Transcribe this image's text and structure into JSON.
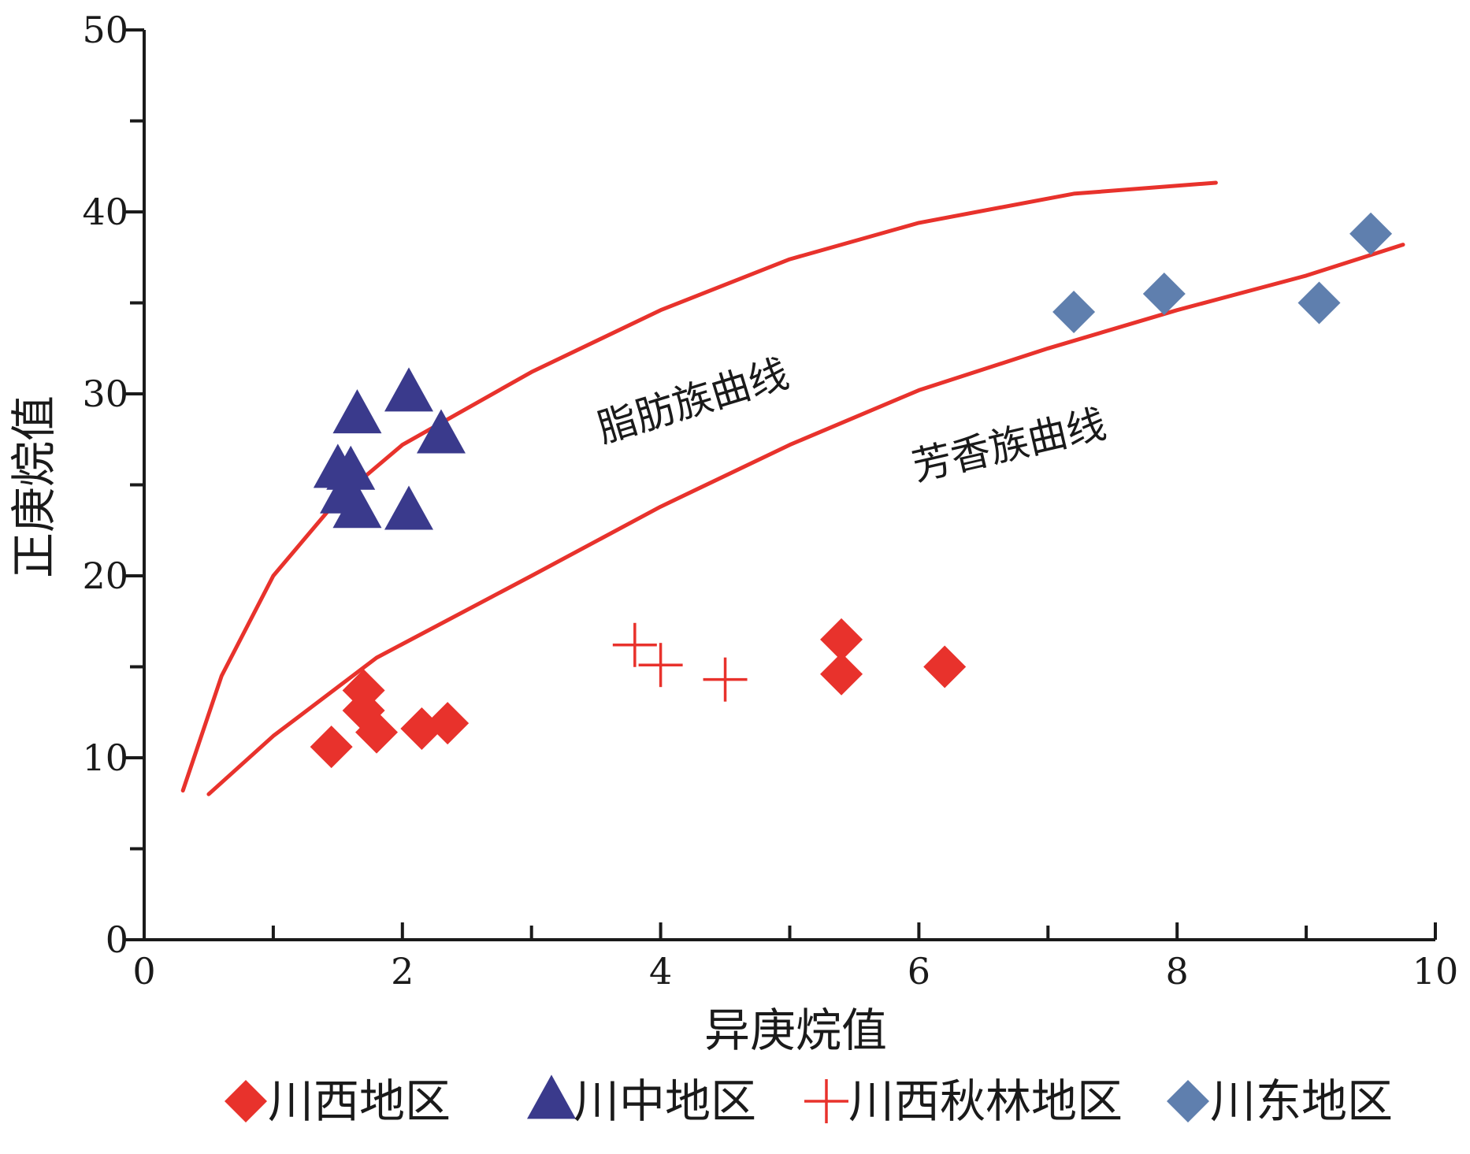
{
  "chart_data": {
    "type": "scatter",
    "xlabel": "异庚烷值",
    "ylabel": "正庚烷值",
    "xlim": [
      0,
      10
    ],
    "ylim": [
      0,
      50
    ],
    "x_ticks": [
      0,
      2,
      4,
      6,
      8,
      10
    ],
    "y_ticks": [
      0,
      10,
      20,
      30,
      40,
      50
    ],
    "x_tick_labels": [
      "0",
      "2",
      "4",
      "6",
      "8",
      "10"
    ],
    "y_tick_labels": [
      "0",
      "10",
      "20",
      "30",
      "40",
      "50"
    ],
    "grid": false,
    "legend_position": "bottom",
    "series": [
      {
        "name": "川西地区",
        "marker": "diamond",
        "color": "#e8322c",
        "points": [
          [
            1.45,
            10.6
          ],
          [
            1.7,
            13.7
          ],
          [
            1.7,
            12.6
          ],
          [
            1.8,
            11.4
          ],
          [
            2.15,
            11.6
          ],
          [
            2.35,
            11.9
          ],
          [
            5.4,
            16.5
          ],
          [
            5.4,
            14.6
          ],
          [
            6.2,
            15.0
          ]
        ]
      },
      {
        "name": "川中地区",
        "marker": "triangle",
        "color": "#3a3a8c",
        "points": [
          [
            1.65,
            28.8
          ],
          [
            2.05,
            30.0
          ],
          [
            2.3,
            27.7
          ],
          [
            1.5,
            25.8
          ],
          [
            1.6,
            25.7
          ],
          [
            1.55,
            24.4
          ],
          [
            1.65,
            23.6
          ],
          [
            2.05,
            23.5
          ]
        ]
      },
      {
        "name": "川西秋林地区",
        "marker": "plus",
        "color": "#e8322c",
        "points": [
          [
            3.8,
            16.2
          ],
          [
            4.0,
            15.1
          ],
          [
            4.5,
            14.3
          ]
        ]
      },
      {
        "name": "川东地区",
        "marker": "diamond",
        "color": "#5f7fae",
        "points": [
          [
            7.2,
            34.5
          ],
          [
            7.9,
            35.5
          ],
          [
            9.1,
            35.0
          ],
          [
            9.5,
            38.8
          ]
        ]
      }
    ],
    "curves": [
      {
        "name": "脂肪族曲线",
        "color": "#e8322c",
        "points": [
          [
            0.3,
            8.2
          ],
          [
            0.6,
            14.5
          ],
          [
            1.0,
            20.0
          ],
          [
            1.5,
            24.2
          ],
          [
            2.0,
            27.2
          ],
          [
            3.0,
            31.2
          ],
          [
            4.0,
            34.6
          ],
          [
            5.0,
            37.4
          ],
          [
            6.0,
            39.4
          ],
          [
            7.2,
            41.0
          ],
          [
            8.3,
            41.6
          ]
        ]
      },
      {
        "name": "芳香族曲线",
        "color": "#e8322c",
        "points": [
          [
            0.5,
            8.0
          ],
          [
            1.0,
            11.2
          ],
          [
            1.8,
            15.5
          ],
          [
            3.0,
            20.0
          ],
          [
            4.0,
            23.8
          ],
          [
            5.0,
            27.2
          ],
          [
            6.0,
            30.2
          ],
          [
            7.0,
            32.5
          ],
          [
            8.0,
            34.6
          ],
          [
            9.0,
            36.5
          ],
          [
            9.75,
            38.2
          ]
        ]
      }
    ],
    "curve_labels": [
      "脂肪族曲线",
      "芳香族曲线"
    ]
  }
}
